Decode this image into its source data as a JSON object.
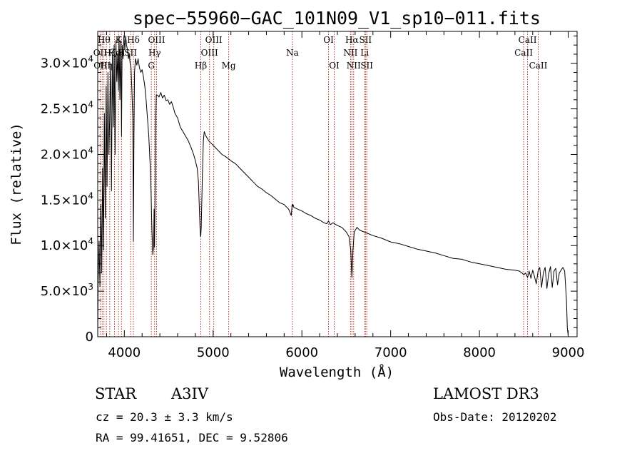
{
  "chart_data": {
    "type": "line",
    "title": "spec−55960−GAC_101N09_V1_sp10−011.fits",
    "xlabel": "Wavelength (Å)",
    "ylabel": "Flux (relative)",
    "xlim": [
      3700,
      9100
    ],
    "ylim": [
      0,
      33500
    ],
    "x_ticks": [
      {
        "value": 4000,
        "label": "4000"
      },
      {
        "value": 5000,
        "label": "5000"
      },
      {
        "value": 6000,
        "label": "6000"
      },
      {
        "value": 7000,
        "label": "7000"
      },
      {
        "value": 8000,
        "label": "8000"
      },
      {
        "value": 9000,
        "label": "9000"
      }
    ],
    "y_ticks": [
      {
        "value": 0,
        "mantissa": "0",
        "exponent": ""
      },
      {
        "value": 5000,
        "mantissa": "5.0×10",
        "exponent": "3"
      },
      {
        "value": 10000,
        "mantissa": "1.0×10",
        "exponent": "4"
      },
      {
        "value": 15000,
        "mantissa": "1.5×10",
        "exponent": "4"
      },
      {
        "value": 20000,
        "mantissa": "2.0×10",
        "exponent": "4"
      },
      {
        "value": 25000,
        "mantissa": "2.5×10",
        "exponent": "4"
      },
      {
        "value": 30000,
        "mantissa": "3.0×10",
        "exponent": "4"
      }
    ],
    "series": [
      {
        "name": "spectrum",
        "x": [
          3700,
          3705,
          3715,
          3725,
          3735,
          3745,
          3755,
          3765,
          3775,
          3785,
          3795,
          3805,
          3815,
          3825,
          3835,
          3845,
          3855,
          3865,
          3875,
          3885,
          3895,
          3905,
          3915,
          3925,
          3933,
          3940,
          3950,
          3960,
          3968,
          3975,
          3985,
          3995,
          4005,
          4015,
          4025,
          4035,
          4045,
          4055,
          4065,
          4075,
          4085,
          4095,
          4102,
          4108,
          4115,
          4125,
          4140,
          4155,
          4170,
          4185,
          4200,
          4215,
          4230,
          4245,
          4260,
          4275,
          4290,
          4300,
          4310,
          4320,
          4330,
          4335,
          4340,
          4345,
          4350,
          4360,
          4375,
          4390,
          4410,
          4430,
          4450,
          4470,
          4490,
          4510,
          4530,
          4550,
          4570,
          4600,
          4630,
          4660,
          4690,
          4720,
          4750,
          4780,
          4800,
          4820,
          4835,
          4845,
          4852,
          4858,
          4862,
          4866,
          4872,
          4880,
          4890,
          4900,
          4920,
          4950,
          5000,
          5050,
          5100,
          5150,
          5200,
          5250,
          5300,
          5350,
          5400,
          5450,
          5500,
          5550,
          5600,
          5650,
          5700,
          5750,
          5800,
          5850,
          5880,
          5890,
          5895,
          5900,
          5910,
          5950,
          6000,
          6050,
          6100,
          6150,
          6200,
          6250,
          6280,
          6300,
          6320,
          6350,
          6400,
          6450,
          6500,
          6530,
          6550,
          6558,
          6563,
          6568,
          6575,
          6590,
          6620,
          6650,
          6700,
          6750,
          6800,
          6900,
          7000,
          7100,
          7200,
          7300,
          7400,
          7500,
          7600,
          7700,
          7800,
          7900,
          8000,
          8100,
          8200,
          8300,
          8400,
          8450,
          8480,
          8500,
          8520,
          8542,
          8560,
          8580,
          8600,
          8620,
          8640,
          8662,
          8680,
          8700,
          8720,
          8740,
          8760,
          8780,
          8800,
          8820,
          8840,
          8860,
          8880,
          8900,
          8920,
          8940,
          8960,
          8980,
          8990,
          9000
        ],
        "y": [
          0,
          6000,
          10500,
          5500,
          14500,
          7000,
          18500,
          9500,
          24500,
          13000,
          27500,
          16500,
          29000,
          20000,
          24000,
          30000,
          16000,
          31000,
          23000,
          32000,
          20000,
          32500,
          28000,
          31000,
          27000,
          33000,
          26000,
          32500,
          22000,
          32000,
          30500,
          33000,
          31500,
          33000,
          32000,
          31500,
          30500,
          31000,
          30000,
          29500,
          27000,
          24000,
          10500,
          22000,
          29000,
          30500,
          29800,
          30500,
          29500,
          29000,
          29300,
          28500,
          27500,
          26000,
          24000,
          22000,
          19000,
          16000,
          12000,
          9000,
          10000,
          14000,
          9800,
          15000,
          22000,
          26500,
          26500,
          26300,
          26800,
          26200,
          26500,
          25900,
          26000,
          25500,
          25800,
          25200,
          24500,
          24000,
          23000,
          22500,
          22000,
          21500,
          20800,
          20000,
          19300,
          18500,
          17000,
          14000,
          12000,
          11000,
          11200,
          12000,
          14500,
          18000,
          21500,
          22500,
          22000,
          21500,
          21000,
          20500,
          20000,
          19700,
          19300,
          19000,
          18500,
          18000,
          17500,
          17000,
          16500,
          16200,
          15800,
          15500,
          15100,
          14700,
          14500,
          14000,
          13300,
          14500,
          14300,
          14500,
          14200,
          14000,
          13800,
          13500,
          13300,
          13000,
          12800,
          12500,
          12400,
          12700,
          12300,
          12500,
          12200,
          12000,
          11500,
          11000,
          9500,
          7500,
          6500,
          7500,
          9500,
          11500,
          12000,
          11700,
          11500,
          11300,
          11100,
          10800,
          10400,
          10200,
          9900,
          9600,
          9400,
          9200,
          8900,
          8600,
          8500,
          8200,
          8000,
          7800,
          7600,
          7400,
          7300,
          7200,
          7000,
          6800,
          7000,
          6500,
          7200,
          6400,
          7300,
          6600,
          5800,
          7300,
          7600,
          5400,
          7000,
          7600,
          5300,
          6900,
          7700,
          5400,
          7200,
          7500,
          5700,
          7000,
          7300,
          7600,
          7200,
          4000,
          1000,
          0
        ]
      }
    ],
    "lines": [
      {
        "x": 3727,
        "label": "OII",
        "row": 1
      },
      {
        "x": 3750,
        "label": "OIII",
        "row": 2
      },
      {
        "x": 3770,
        "label": "Hθ",
        "row": 0
      },
      {
        "x": 3798,
        "label": "Hη",
        "row": 2
      },
      {
        "x": 3835,
        "label": "Hζ",
        "row": 1
      },
      {
        "x": 3889,
        "label": "He",
        "row": 1
      },
      {
        "x": 3934,
        "label": "K",
        "row": 0
      },
      {
        "x": 3968,
        "label": "H",
        "row": 1
      },
      {
        "x": 4071,
        "label": "SII",
        "row": 1
      },
      {
        "x": 4102,
        "label": "Hδ",
        "row": 0
      },
      {
        "x": 4304,
        "label": "G",
        "row": 2
      },
      {
        "x": 4341,
        "label": "Hγ",
        "row": 1
      },
      {
        "x": 4363,
        "label": "OIII",
        "row": 0
      },
      {
        "x": 4861,
        "label": "Hβ",
        "row": 2
      },
      {
        "x": 4959,
        "label": "OIII",
        "row": 1
      },
      {
        "x": 5007,
        "label": "OIII",
        "row": 0
      },
      {
        "x": 5175,
        "label": "Mg",
        "row": 2
      },
      {
        "x": 5893,
        "label": "Na",
        "row": 1
      },
      {
        "x": 6300,
        "label": "OI",
        "row": 0
      },
      {
        "x": 6364,
        "label": "OI",
        "row": 2
      },
      {
        "x": 6548,
        "label": "NII",
        "row": 1
      },
      {
        "x": 6563,
        "label": "Hα",
        "row": 0
      },
      {
        "x": 6583,
        "label": "NII",
        "row": 2
      },
      {
        "x": 6707,
        "label": "Li",
        "row": 1
      },
      {
        "x": 6716,
        "label": "SII",
        "row": 0
      },
      {
        "x": 6731,
        "label": "SII",
        "row": 2
      },
      {
        "x": 8498,
        "label": "CaII",
        "row": 1
      },
      {
        "x": 8542,
        "label": "CaII",
        "row": 0
      },
      {
        "x": 8662,
        "label": "CaII",
        "row": 2
      }
    ]
  },
  "info": {
    "object_class": "STAR",
    "subclass": "A3IV",
    "survey": "LAMOST DR3",
    "redshift": "cz = 20.3 ± 3.3 km/s",
    "obs_date": "Obs-Date: 20120202",
    "coords": "RA =  99.41651, DEC =   9.52806"
  },
  "colors": {
    "spectrum": "#000000",
    "line_marker": "#c0392b",
    "axes": "#000000",
    "background": "#ffffff"
  }
}
